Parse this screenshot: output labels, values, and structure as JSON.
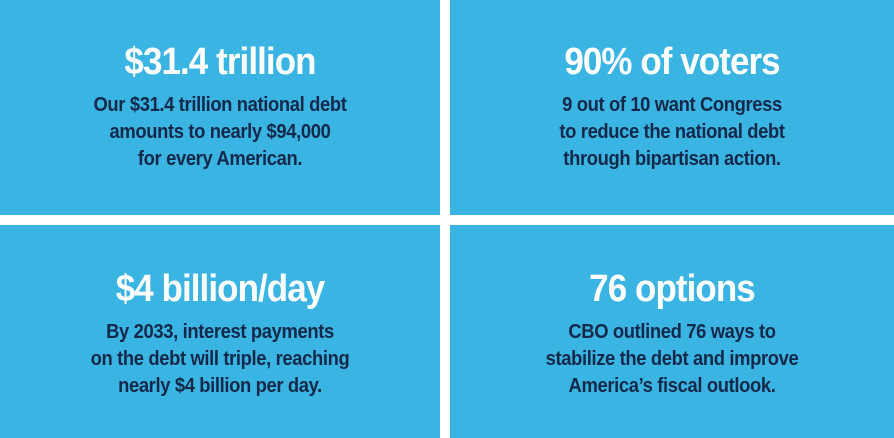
{
  "tiles": [
    {
      "headline": "$31.4 trillion",
      "lines": [
        "Our $31.4 trillion national debt",
        "amounts to nearly $94,000",
        "for every American."
      ]
    },
    {
      "headline": "90% of voters",
      "lines": [
        "9 out of 10 want Congress",
        "to reduce the national debt",
        "through bipartisan action."
      ]
    },
    {
      "headline": "$4 billion/day",
      "lines": [
        "By 2033, interest payments",
        "on the debt will triple, reaching",
        "nearly $4 billion per day."
      ]
    },
    {
      "headline": "76 options",
      "lines": [
        "CBO outlined 76 ways to",
        "stabilize the debt and improve",
        "America’s fiscal outlook."
      ]
    }
  ]
}
